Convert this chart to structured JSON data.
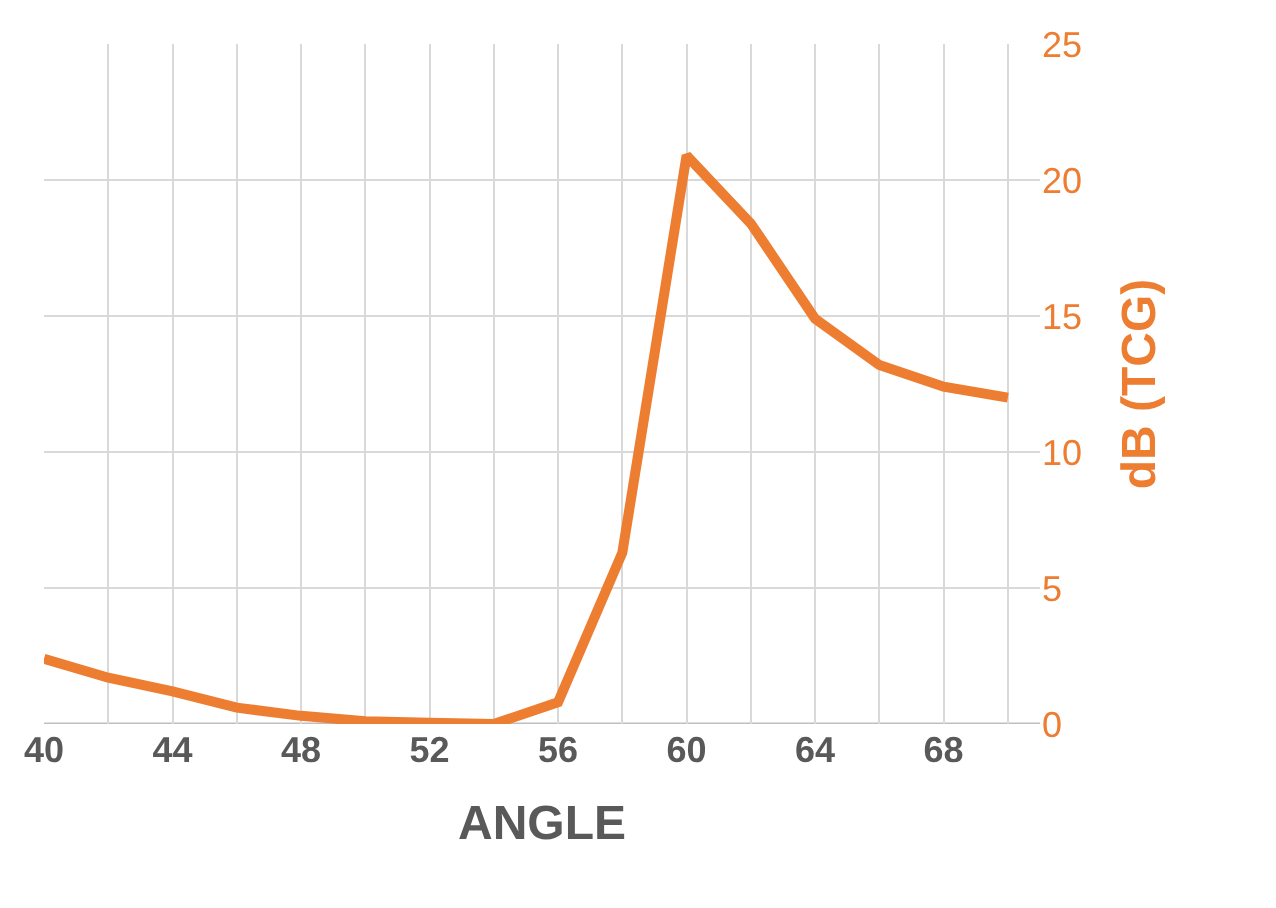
{
  "chart_data": {
    "type": "line",
    "xlabel": "ANGLE",
    "ylabel": "dB (TCG)",
    "x": [
      40,
      42,
      44,
      46,
      48,
      50,
      52,
      54,
      56,
      58,
      60,
      62,
      64,
      66,
      68,
      70
    ],
    "series": [
      {
        "color": "#ed7d31",
        "values": [
          2.4,
          1.7,
          1.2,
          0.6,
          0.3,
          0.1,
          0.05,
          0,
          0.8,
          6.3,
          20.9,
          18.4,
          14.9,
          13.2,
          12.4,
          12.0
        ]
      }
    ],
    "xlim": [
      40,
      71
    ],
    "xticks": [
      40,
      {
        "value": 42,
        "label": null
      },
      44,
      {
        "value": 46,
        "label": null
      },
      48,
      {
        "value": 50,
        "label": null
      },
      52,
      {
        "value": 54,
        "label": null
      },
      56,
      {
        "value": 58,
        "label": null
      },
      60,
      {
        "value": 62,
        "label": null
      },
      64,
      {
        "value": 66,
        "label": null
      },
      68,
      {
        "value": 70,
        "label": null
      }
    ],
    "ylim": [
      0,
      25
    ],
    "yticks": [
      0,
      5,
      10,
      15,
      20,
      25
    ],
    "grid": true,
    "marker": "none",
    "line_style": "solid"
  }
}
